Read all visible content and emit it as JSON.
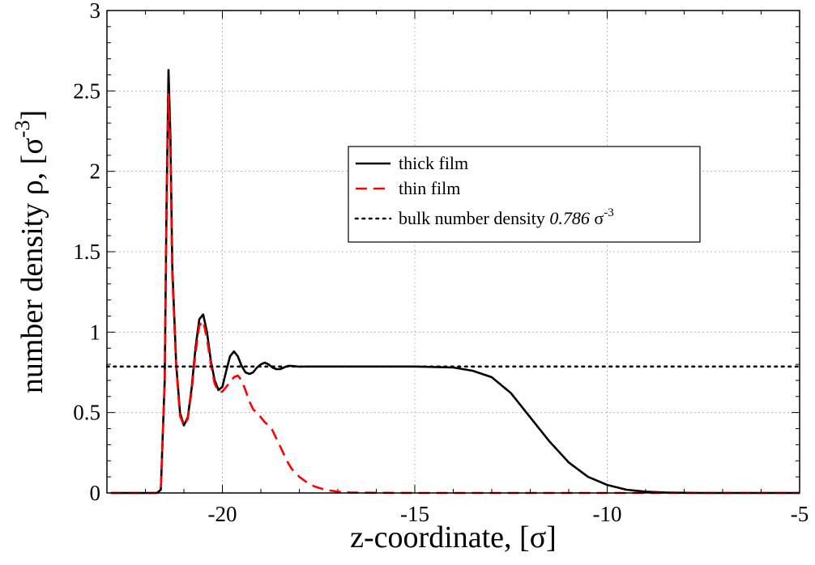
{
  "chart_data": {
    "type": "line",
    "xlabel": "z-coordinate, [σ]",
    "ylabel_main": "number density ρ, [σ",
    "ylabel_sup": "-3",
    "ylabel_close": "]",
    "xlim": [
      -23,
      -5
    ],
    "ylim": [
      0,
      3
    ],
    "xticks": [
      -20,
      -15,
      -10,
      -5
    ],
    "yticks": [
      0,
      0.5,
      1,
      1.5,
      2,
      2.5,
      3
    ],
    "xtick_labels": [
      "-20",
      "-15",
      "-10",
      "-5"
    ],
    "ytick_labels": [
      "0",
      "0.5",
      "1",
      "1.5",
      "2",
      "2.5",
      "3"
    ],
    "grid": true,
    "legend_position": "upper-middle-right",
    "series": [
      {
        "name": "thick film",
        "style": "solid",
        "color": "#000000",
        "x": [
          -22.9,
          -21.7,
          -21.6,
          -21.5,
          -21.45,
          -21.4,
          -21.35,
          -21.3,
          -21.2,
          -21.1,
          -21.0,
          -20.9,
          -20.8,
          -20.7,
          -20.6,
          -20.5,
          -20.4,
          -20.3,
          -20.2,
          -20.1,
          -20.0,
          -19.9,
          -19.8,
          -19.7,
          -19.6,
          -19.5,
          -19.4,
          -19.3,
          -19.2,
          -19.1,
          -19.0,
          -18.9,
          -18.8,
          -18.7,
          -18.6,
          -18.5,
          -18.4,
          -18.3,
          -18.2,
          -18.0,
          -17.8,
          -17.6,
          -17.4,
          -17.0,
          -16.0,
          -15.0,
          -14.0,
          -13.5,
          -13.0,
          -12.5,
          -12.0,
          -11.5,
          -11.0,
          -10.5,
          -10.0,
          -9.5,
          -9.0,
          -8.5,
          -8.0,
          -7.5,
          -7.0,
          -5.0
        ],
        "y": [
          0,
          0,
          0.02,
          0.7,
          1.8,
          2.63,
          2.2,
          1.4,
          0.8,
          0.5,
          0.42,
          0.47,
          0.65,
          0.9,
          1.08,
          1.11,
          1.0,
          0.82,
          0.7,
          0.64,
          0.66,
          0.76,
          0.85,
          0.88,
          0.85,
          0.79,
          0.75,
          0.74,
          0.75,
          0.78,
          0.8,
          0.81,
          0.8,
          0.78,
          0.77,
          0.77,
          0.78,
          0.79,
          0.79,
          0.785,
          0.786,
          0.786,
          0.786,
          0.786,
          0.786,
          0.786,
          0.78,
          0.76,
          0.72,
          0.62,
          0.47,
          0.32,
          0.19,
          0.1,
          0.05,
          0.02,
          0.008,
          0.003,
          0.001,
          0,
          0,
          0
        ]
      },
      {
        "name": "thin film",
        "style": "dashed",
        "color": "#ff0000",
        "x": [
          -22.9,
          -21.7,
          -21.6,
          -21.5,
          -21.45,
          -21.4,
          -21.35,
          -21.3,
          -21.2,
          -21.1,
          -21.0,
          -20.9,
          -20.8,
          -20.7,
          -20.6,
          -20.5,
          -20.4,
          -20.3,
          -20.2,
          -20.1,
          -20.0,
          -19.9,
          -19.8,
          -19.7,
          -19.6,
          -19.5,
          -19.4,
          -19.3,
          -19.2,
          -19.1,
          -19.0,
          -18.9,
          -18.8,
          -18.7,
          -18.6,
          -18.5,
          -18.4,
          -18.3,
          -18.2,
          -18.0,
          -17.8,
          -17.6,
          -17.4,
          -17.2,
          -17.0,
          -16.7,
          -16.5,
          -16.0,
          -15.0,
          -5.0
        ],
        "y": [
          0,
          0,
          0.02,
          0.68,
          1.75,
          2.48,
          2.1,
          1.35,
          0.78,
          0.48,
          0.42,
          0.46,
          0.63,
          0.87,
          1.04,
          1.07,
          0.96,
          0.8,
          0.68,
          0.63,
          0.63,
          0.66,
          0.69,
          0.72,
          0.73,
          0.7,
          0.64,
          0.57,
          0.52,
          0.5,
          0.47,
          0.44,
          0.42,
          0.39,
          0.34,
          0.29,
          0.24,
          0.19,
          0.15,
          0.1,
          0.065,
          0.04,
          0.025,
          0.015,
          0.008,
          0.003,
          0.002,
          0.001,
          0,
          0
        ]
      },
      {
        "name": "bulk number density",
        "name_value": "0.786",
        "name_unit": "σ",
        "name_unit_sup": "-3",
        "style": "dotted",
        "color": "#000000",
        "x": [
          -23,
          -5
        ],
        "y": [
          0.786,
          0.786
        ]
      }
    ]
  }
}
